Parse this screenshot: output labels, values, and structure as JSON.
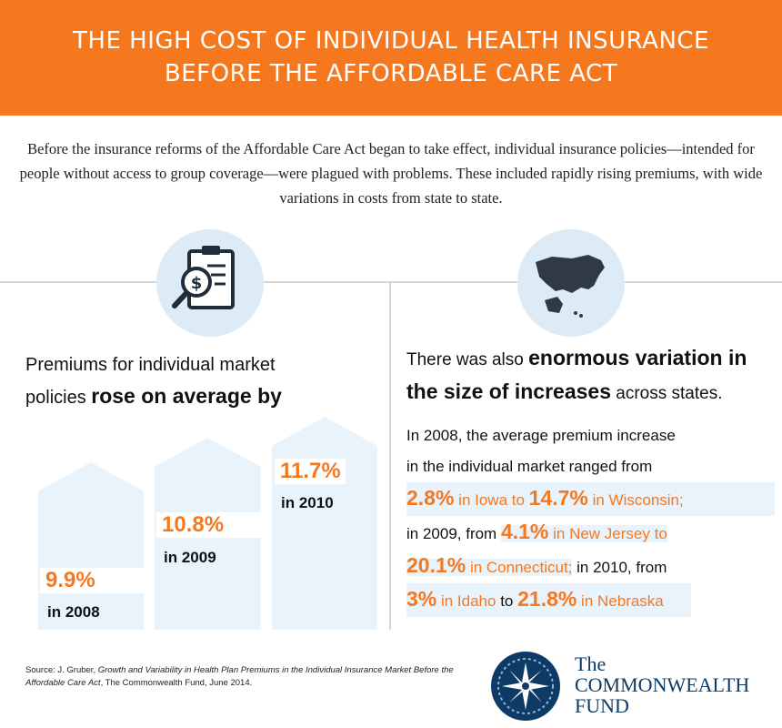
{
  "header": {
    "line1": "THE HIGH COST OF INDIVIDUAL HEALTH INSURANCE",
    "line2": "BEFORE THE AFFORDABLE CARE ACT"
  },
  "intro": "Before the insurance reforms of the Affordable Care Act began to take effect, individual insurance policies—intended for people without access to group coverage—were plagued with problems. These included rapidly rising premiums, with wide variations in costs from state to state.",
  "icons": {
    "left": "clipboard-dollar-magnifier-icon",
    "right": "us-map-icon"
  },
  "left": {
    "heading_part1": "Premiums for individual market",
    "heading_part2": "policies ",
    "heading_bold": "rose on average by",
    "bars": [
      {
        "value": "9.9%",
        "year": "in 2008",
        "level": 9.9
      },
      {
        "value": "10.8%",
        "year": "in 2009",
        "level": 10.8
      },
      {
        "value": "11.7%",
        "year": "in 2010",
        "level": 11.7
      }
    ]
  },
  "right": {
    "heading_part1": "There was also ",
    "heading_bold": "enormous variation in the size of increases",
    "heading_part2": " across states.",
    "body_line1": "In 2008, the average premium increase",
    "body_line2": "in the individual market ranged from",
    "n1": "2.8%",
    "s1": " in Iowa to ",
    "n2": "14.7%",
    "s2": " in Wisconsin;",
    "t1": "in 2009, from ",
    "n3": "4.1%",
    "s3": " in New Jersey to",
    "n4": "20.1%",
    "s4": " in Connecticut;",
    "t2": " in 2010, from",
    "n5": "3%",
    "s5": " in Idaho",
    "t3": " to ",
    "n6": "21.8%",
    "s6": " in Nebraska"
  },
  "source": {
    "prefix": "Source: J. Gruber, ",
    "title": "Growth and Variability in Health Plan Premiums in the Individual Insurance Market Before the Affordable Care Act",
    "suffix": ", The Commonwealth Fund, June 2014."
  },
  "logo": {
    "line1": "The",
    "line2": "COMMONWEALTH",
    "line3": "FUND"
  },
  "colors": {
    "accent": "#f5781f",
    "bar": "#e8f3fb",
    "navy": "#0d3b66"
  }
}
